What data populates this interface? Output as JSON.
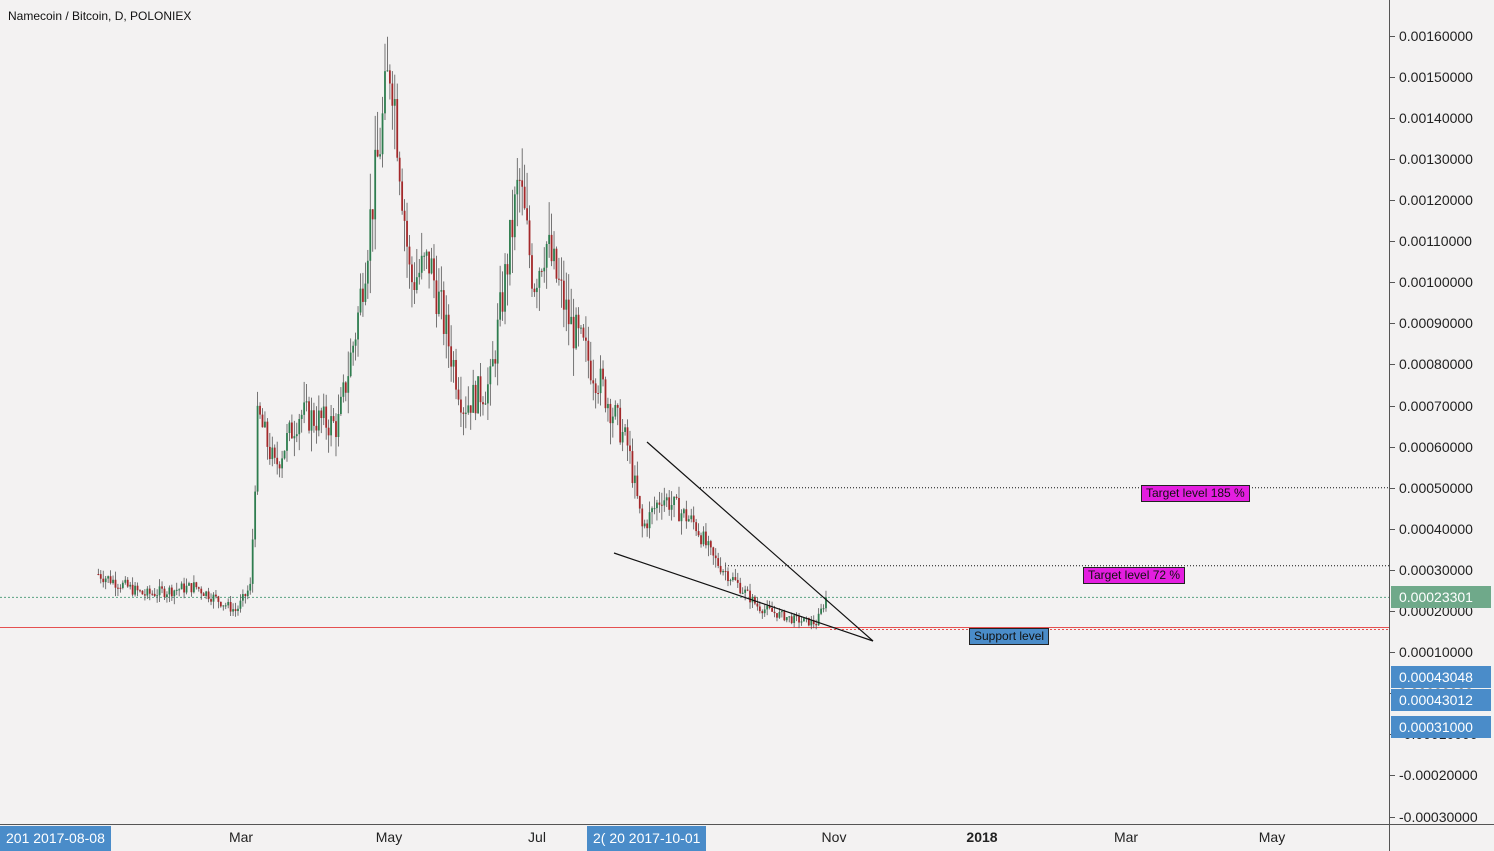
{
  "legend": {
    "title": "Namecoin / Bitcoin, D, POLONIEX"
  },
  "colors": {
    "up": "#2e7d4f",
    "down": "#a3282a",
    "current_line": "#5aa383",
    "support_line": "#e55050",
    "target_badge": "#e41ee0",
    "support_badge": "#4a8cc9",
    "axis_badge": "#4a8cc9",
    "last_price_badge": "#6fa98a"
  },
  "price_axis": {
    "ticks": [
      "0.00160000",
      "0.00150000",
      "0.00140000",
      "0.00130000",
      "0.00120000",
      "0.00110000",
      "0.00100000",
      "0.00090000",
      "0.00080000",
      "0.00070000",
      "0.00060000",
      "0.00050000",
      "0.00040000",
      "0.00030000",
      "0.00020000",
      "0.00010000",
      "0.00000000",
      "-0.00010000",
      "-0.00020000",
      "-0.00030000"
    ],
    "tick_values": [
      0.0016,
      0.0015,
      0.0014,
      0.0013,
      0.0012,
      0.0011,
      0.001,
      0.0009,
      0.0008,
      0.0007,
      0.0006,
      0.0005,
      0.0004,
      0.0003,
      0.0002,
      0.0001,
      0.0,
      -0.0001,
      -0.0002,
      -0.0003
    ],
    "badges": [
      {
        "label": "0.00023301",
        "value": 0.00023301,
        "kind": "last"
      },
      {
        "label": "0.00043048",
        "value": 4e-05,
        "kind": "axis"
      },
      {
        "label": "0.00043012",
        "value": -1.55e-05,
        "kind": "axis"
      },
      {
        "label": "0.00031000",
        "value": -8.15e-05,
        "kind": "axis"
      }
    ]
  },
  "time_axis": {
    "labels": [
      {
        "text": "Mar",
        "bold": false
      },
      {
        "text": "May",
        "bold": false
      },
      {
        "text": "Jul",
        "bold": false
      },
      {
        "text": "Nov",
        "bold": false
      },
      {
        "text": "2018",
        "bold": true
      },
      {
        "text": "Mar",
        "bold": false
      },
      {
        "text": "May",
        "bold": false
      }
    ],
    "badges": [
      {
        "text": "201 2017-08-08"
      },
      {
        "text": "2( 20 2017-10-01"
      }
    ]
  },
  "annotations": {
    "target_185": "Target level 185 %",
    "target_72": "Target level 72 %",
    "support": "Support level"
  },
  "levels": {
    "target_185": 0.0005,
    "target_72": 0.00031,
    "current": 0.00023301,
    "support": 0.00016
  },
  "chart_data": {
    "type": "candlestick",
    "title": "Namecoin / Bitcoin, D, POLONIEX",
    "ylim": [
      -0.00031,
      0.0018
    ],
    "waypoints": [
      {
        "date": "2017-01-01",
        "price": 0.00029
      },
      {
        "date": "2017-01-20",
        "price": 0.00024
      },
      {
        "date": "2017-02-10",
        "price": 0.00026
      },
      {
        "date": "2017-02-27",
        "price": 0.0002
      },
      {
        "date": "2017-03-05",
        "price": 0.00026
      },
      {
        "date": "2017-03-08",
        "price": 0.00068
      },
      {
        "date": "2017-03-15",
        "price": 0.00055
      },
      {
        "date": "2017-03-25",
        "price": 0.00068
      },
      {
        "date": "2017-04-10",
        "price": 0.00065
      },
      {
        "date": "2017-04-18",
        "price": 0.0009
      },
      {
        "date": "2017-05-02",
        "price": 0.00155
      },
      {
        "date": "2017-05-10",
        "price": 0.001
      },
      {
        "date": "2017-05-18",
        "price": 0.00105
      },
      {
        "date": "2017-06-01",
        "price": 0.0007
      },
      {
        "date": "2017-06-12",
        "price": 0.00075
      },
      {
        "date": "2017-06-24",
        "price": 0.00125
      },
      {
        "date": "2017-06-30",
        "price": 0.001
      },
      {
        "date": "2017-07-05",
        "price": 0.0011
      },
      {
        "date": "2017-07-15",
        "price": 0.0009
      },
      {
        "date": "2017-07-28",
        "price": 0.00075
      },
      {
        "date": "2017-08-08",
        "price": 0.0006
      },
      {
        "date": "2017-08-14",
        "price": 0.0004
      },
      {
        "date": "2017-08-22",
        "price": 0.00048
      },
      {
        "date": "2017-09-05",
        "price": 0.00041
      },
      {
        "date": "2017-09-12",
        "price": 0.00033
      },
      {
        "date": "2017-09-20",
        "price": 0.00028
      },
      {
        "date": "2017-10-01",
        "price": 0.00021
      },
      {
        "date": "2017-10-15",
        "price": 0.00018
      },
      {
        "date": "2017-10-25",
        "price": 0.00017
      },
      {
        "date": "2017-10-29",
        "price": 0.00023301
      }
    ]
  }
}
